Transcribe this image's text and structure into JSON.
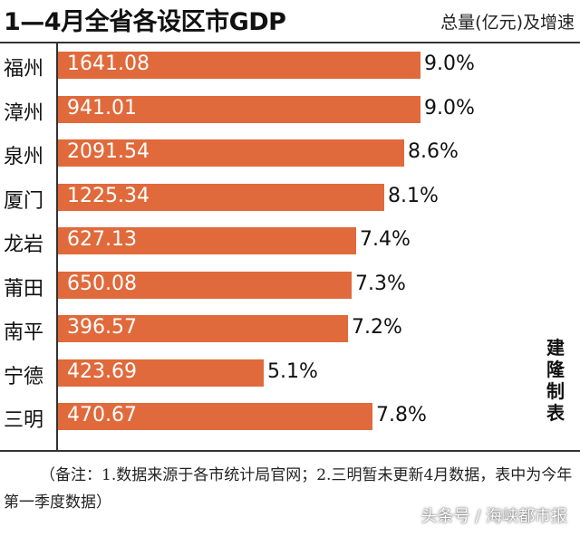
{
  "chart_data": {
    "type": "bar",
    "orientation": "horizontal",
    "title": "1—4月全省各设区市GDP",
    "unit_label": "总量(亿元)及增速",
    "categories": [
      "福州",
      "漳州",
      "泉州",
      "厦门",
      "龙岩",
      "莆田",
      "南平",
      "宁德",
      "三明"
    ],
    "series": [
      {
        "name": "总量(亿元)",
        "values": [
          1641.08,
          941.01,
          2091.54,
          1225.34,
          627.13,
          650.08,
          396.57,
          423.69,
          470.67
        ]
      },
      {
        "name": "增速",
        "values": [
          9.0,
          9.0,
          8.6,
          8.1,
          7.4,
          7.3,
          7.2,
          5.1,
          7.8
        ]
      }
    ],
    "value_labels": [
      "1641.08",
      "941.01",
      "2091.54",
      "1225.34",
      "627.13",
      "650.08",
      "396.57",
      "423.69",
      "470.67"
    ],
    "rate_labels": [
      "9.0%",
      "9.0%",
      "8.6%",
      "8.1%",
      "7.4%",
      "7.3%",
      "7.2%",
      "5.1%",
      "7.8%"
    ],
    "bar_length_encodes": "增速",
    "xlim": [
      0,
      9.0
    ],
    "bar_color": "#e06a3b",
    "grid": false,
    "legend": "none"
  },
  "credit": "建隆制表",
  "note": "（备注：1.数据来源于各市统计局官网；2.三明暂未更新4月数据，表中为今年第一季度数据）",
  "watermark": "头条号 / 海峡都市报"
}
